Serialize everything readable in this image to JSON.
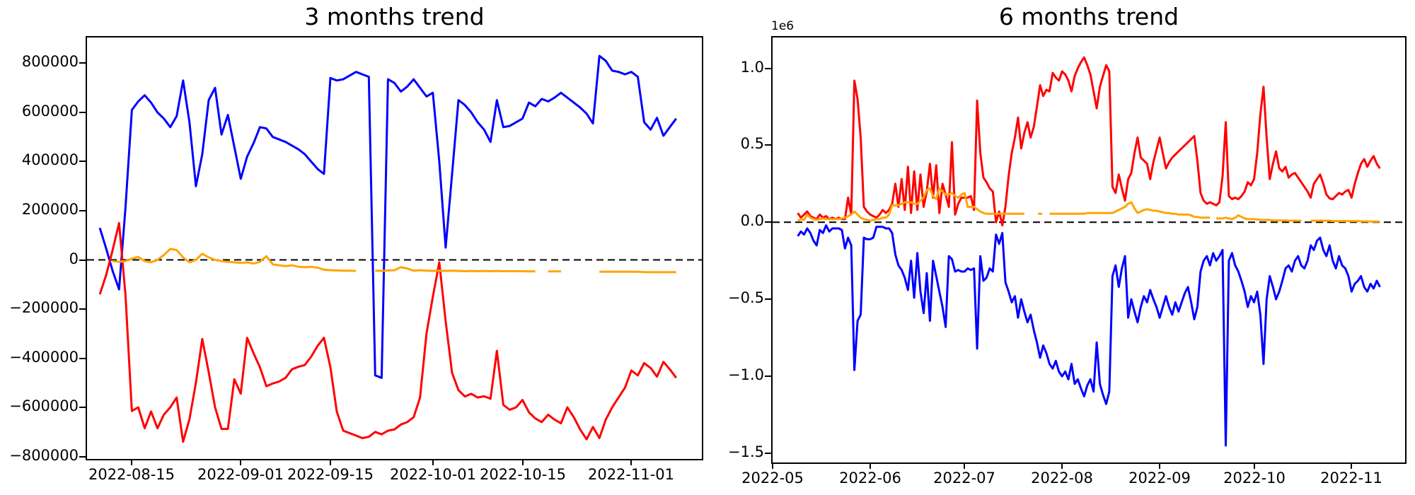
{
  "colors": {
    "blue_series": "#0000ff",
    "red_series": "#ff0000",
    "orange_series": "#ffa500",
    "zero_line": "#000000",
    "axis": "#000000",
    "background": "#ffffff"
  },
  "chart_data": [
    {
      "type": "line",
      "title": "3 months trend",
      "x_unit": "days",
      "x_start_date": "2022-08-08",
      "xlim": [
        0,
        96
      ],
      "ylim": [
        -810000,
        905000
      ],
      "value_multiplier": 1,
      "grid": false,
      "legend": null,
      "zero_line": true,
      "x_ticks": [
        {
          "x": 7,
          "label": "2022-08-15"
        },
        {
          "x": 24,
          "label": "2022-09-01"
        },
        {
          "x": 38,
          "label": "2022-09-15"
        },
        {
          "x": 54,
          "label": "2022-10-01"
        },
        {
          "x": 68,
          "label": "2022-10-15"
        },
        {
          "x": 85,
          "label": "2022-11-01"
        }
      ],
      "y_ticks": [
        {
          "v": 800000,
          "label": "800000"
        },
        {
          "v": 600000,
          "label": "600000"
        },
        {
          "v": 400000,
          "label": "400000"
        },
        {
          "v": 200000,
          "label": "200000"
        },
        {
          "v": 0,
          "label": "0"
        },
        {
          "v": -200000,
          "label": "−200000"
        },
        {
          "v": -400000,
          "label": "−400000"
        },
        {
          "v": -600000,
          "label": "−600000"
        },
        {
          "v": -800000,
          "label": "−800000"
        }
      ],
      "series": [
        {
          "name": "blue",
          "color": "#0000ff",
          "x0": 2,
          "dx": 1,
          "values": [
            130000,
            45000,
            -45000,
            -120000,
            210000,
            610000,
            645000,
            670000,
            640000,
            600000,
            575000,
            540000,
            585000,
            730000,
            560000,
            300000,
            430000,
            650000,
            700000,
            510000,
            590000,
            460000,
            330000,
            420000,
            475000,
            540000,
            535000,
            500000,
            490000,
            480000,
            465000,
            450000,
            430000,
            400000,
            370000,
            350000,
            740000,
            730000,
            735000,
            750000,
            765000,
            755000,
            745000,
            -470000,
            -480000,
            735000,
            720000,
            685000,
            705000,
            735000,
            700000,
            665000,
            680000,
            400000,
            50000,
            350000,
            650000,
            630000,
            600000,
            560000,
            530000,
            480000,
            650000,
            540000,
            545000,
            560000,
            575000,
            640000,
            625000,
            655000,
            645000,
            660000,
            680000,
            660000,
            640000,
            620000,
            595000,
            555000,
            830000,
            810000,
            770000,
            765000,
            755000,
            765000,
            745000,
            560000,
            530000,
            578000,
            505000,
            540000,
            575000
          ]
        },
        {
          "name": "red",
          "color": "#ff0000",
          "x0": 2,
          "dx": 1,
          "values": [
            -140000,
            -60000,
            40000,
            150000,
            -140000,
            -615000,
            -600000,
            -685000,
            -617000,
            -685000,
            -630000,
            -600000,
            -560000,
            -740000,
            -648000,
            -500000,
            -322000,
            -457000,
            -600000,
            -688000,
            -688000,
            -486000,
            -544000,
            -317000,
            -380000,
            -437000,
            -514000,
            -503000,
            -495000,
            -480000,
            -445000,
            -435000,
            -428000,
            -394000,
            -350000,
            -317000,
            -437000,
            -617000,
            -695000,
            -705000,
            -715000,
            -725000,
            -720000,
            -700000,
            -710000,
            -695000,
            -690000,
            -670000,
            -660000,
            -640000,
            -560000,
            -300000,
            -150000,
            -10000,
            -250000,
            -460000,
            -530000,
            -556000,
            -545000,
            -560000,
            -555000,
            -565000,
            -370000,
            -590000,
            -610000,
            -600000,
            -570000,
            -620000,
            -645000,
            -660000,
            -630000,
            -650000,
            -665000,
            -600000,
            -640000,
            -690000,
            -730000,
            -680000,
            -725000,
            -650000,
            -600000,
            -560000,
            -520000,
            -450000,
            -470000,
            -420000,
            -440000,
            -475000,
            -415000,
            -445000,
            -480000
          ]
        },
        {
          "name": "orange",
          "color": "#ffa500",
          "x0": 2,
          "dx": 1,
          "values": [
            null,
            null,
            -5000,
            -8000,
            -5000,
            5000,
            12000,
            -5000,
            -10000,
            0,
            20000,
            45000,
            40000,
            10000,
            -10000,
            0,
            25000,
            10000,
            0,
            -5000,
            -8000,
            -10000,
            -12000,
            -10000,
            -15000,
            -8000,
            15000,
            -18000,
            -22000,
            -25000,
            -22000,
            -28000,
            -30000,
            -28000,
            -32000,
            -40000,
            -42000,
            -43000,
            -44000,
            -44000,
            -45000,
            null,
            null,
            -44000,
            -45000,
            -43000,
            -42000,
            -30000,
            -35000,
            -44000,
            -42000,
            -44000,
            -45000,
            -44000,
            -45000,
            -44000,
            -45000,
            -46000,
            -45000,
            -46000,
            -45000,
            -46000,
            -45000,
            -46000,
            -46000,
            -46000,
            -46000,
            -47000,
            -47000,
            null,
            -47000,
            -47000,
            -47000,
            null,
            null,
            null,
            null,
            null,
            -48000,
            -48000,
            -48000,
            -48000,
            -48000,
            -48000,
            -48000,
            -50000,
            -50000,
            -50000,
            -50000,
            -50000,
            -50000
          ]
        }
      ]
    },
    {
      "type": "line",
      "title": "6 months trend",
      "offset_label": "1e6",
      "x_unit": "days",
      "x_start_date": "2022-05-01",
      "xlim": [
        0,
        201
      ],
      "ylim": [
        -1560000,
        1200000
      ],
      "value_multiplier": 1000000,
      "grid": false,
      "legend": null,
      "zero_line": true,
      "x_ticks": [
        {
          "x": 0,
          "label": "2022-05"
        },
        {
          "x": 31,
          "label": "2022-06"
        },
        {
          "x": 61,
          "label": "2022-07"
        },
        {
          "x": 92,
          "label": "2022-08"
        },
        {
          "x": 123,
          "label": "2022-09"
        },
        {
          "x": 153,
          "label": "2022-10"
        },
        {
          "x": 184,
          "label": "2022-11"
        }
      ],
      "y_ticks": [
        {
          "v": 1.0,
          "label": "1.0"
        },
        {
          "v": 0.5,
          "label": "0.5"
        },
        {
          "v": 0.0,
          "label": "0.0"
        },
        {
          "v": -0.5,
          "label": "−0.5"
        },
        {
          "v": -1.0,
          "label": "−1.0"
        },
        {
          "v": -1.5,
          "label": "−1.5"
        }
      ],
      "series": [
        {
          "name": "red",
          "color": "#ff0000",
          "x0": 8,
          "dx": 1,
          "values": [
            0.06,
            0.03,
            0.05,
            0.07,
            0.04,
            0.03,
            0.02,
            0.05,
            0.03,
            0.04,
            0.02,
            0.03,
            0.02,
            0.03,
            0.02,
            0.02,
            0.16,
            0.05,
            0.92,
            0.8,
            0.55,
            0.1,
            0.07,
            0.05,
            0.04,
            0.03,
            0.05,
            0.08,
            0.06,
            0.08,
            0.12,
            0.25,
            0.1,
            0.28,
            0.08,
            0.36,
            0.06,
            0.33,
            0.08,
            0.31,
            0.1,
            0.2,
            0.38,
            0.16,
            0.37,
            0.06,
            0.25,
            0.18,
            0.1,
            0.52,
            0.05,
            0.12,
            0.16,
            0.16,
            0.16,
            0.17,
            0.08,
            0.79,
            0.45,
            0.29,
            0.26,
            0.22,
            0.2,
            0.0,
            0.07,
            -0.02,
            0.1,
            0.3,
            0.45,
            0.55,
            0.68,
            0.48,
            0.58,
            0.65,
            0.55,
            0.62,
            0.75,
            0.89,
            0.82,
            0.86,
            0.85,
            0.97,
            0.94,
            0.92,
            0.98,
            0.96,
            0.92,
            0.85,
            0.95,
            1.0,
            1.04,
            1.07,
            1.02,
            0.96,
            0.85,
            0.74,
            0.88,
            0.95,
            1.02,
            0.98,
            0.23,
            0.19,
            0.31,
            0.22,
            0.14,
            0.28,
            0.32,
            0.45,
            0.55,
            0.42,
            0.4,
            0.38,
            0.28,
            0.39,
            0.47,
            0.55,
            0.45,
            0.35,
            0.39,
            0.42,
            0.44,
            0.46,
            0.48,
            0.5,
            0.52,
            0.54,
            0.56,
            0.4,
            0.19,
            0.14,
            0.12,
            0.13,
            0.12,
            0.11,
            0.13,
            0.3,
            0.65,
            0.17,
            0.15,
            0.16,
            0.15,
            0.17,
            0.2,
            0.26,
            0.24,
            0.28,
            0.45,
            0.7,
            0.88,
            0.55,
            0.28,
            0.38,
            0.46,
            0.35,
            0.33,
            0.36,
            0.29,
            0.31,
            0.32,
            0.29,
            0.26,
            0.23,
            0.2,
            0.16,
            0.25,
            0.28,
            0.31,
            0.25,
            0.18,
            0.155,
            0.15,
            0.17,
            0.19,
            0.18,
            0.2,
            0.21,
            0.16,
            0.25,
            0.32,
            0.38,
            0.41,
            0.36,
            0.4,
            0.43,
            0.38,
            0.35
          ]
        },
        {
          "name": "blue",
          "color": "#0000ff",
          "x0": 8,
          "dx": 1,
          "values": [
            -0.09,
            -0.06,
            -0.08,
            -0.04,
            -0.07,
            -0.12,
            -0.15,
            -0.05,
            -0.07,
            -0.02,
            -0.06,
            -0.04,
            -0.04,
            -0.04,
            -0.05,
            -0.17,
            -0.1,
            -0.15,
            -0.96,
            -0.64,
            -0.6,
            -0.1,
            -0.11,
            -0.11,
            -0.1,
            -0.03,
            -0.03,
            -0.03,
            -0.04,
            -0.04,
            -0.07,
            -0.21,
            -0.28,
            -0.31,
            -0.36,
            -0.44,
            -0.25,
            -0.49,
            -0.2,
            -0.45,
            -0.59,
            -0.33,
            -0.64,
            -0.25,
            -0.35,
            -0.45,
            -0.55,
            -0.68,
            -0.22,
            -0.24,
            -0.32,
            -0.31,
            -0.32,
            -0.32,
            -0.3,
            -0.31,
            -0.3,
            -0.82,
            -0.22,
            -0.38,
            -0.36,
            -0.3,
            -0.32,
            -0.08,
            -0.14,
            -0.07,
            -0.39,
            -0.45,
            -0.52,
            -0.48,
            -0.62,
            -0.5,
            -0.58,
            -0.65,
            -0.6,
            -0.7,
            -0.78,
            -0.88,
            -0.8,
            -0.85,
            -0.92,
            -0.95,
            -0.9,
            -0.97,
            -1.0,
            -0.97,
            -1.02,
            -0.92,
            -1.05,
            -1.02,
            -1.08,
            -1.13,
            -1.06,
            -1.02,
            -1.1,
            -0.78,
            -1.05,
            -1.12,
            -1.18,
            -1.1,
            -0.35,
            -0.28,
            -0.42,
            -0.3,
            -0.22,
            -0.62,
            -0.5,
            -0.58,
            -0.65,
            -0.55,
            -0.48,
            -0.52,
            -0.44,
            -0.5,
            -0.55,
            -0.62,
            -0.55,
            -0.48,
            -0.55,
            -0.6,
            -0.52,
            -0.58,
            -0.52,
            -0.46,
            -0.42,
            -0.52,
            -0.63,
            -0.55,
            -0.32,
            -0.25,
            -0.22,
            -0.28,
            -0.2,
            -0.25,
            -0.22,
            -0.18,
            -1.45,
            -0.25,
            -0.2,
            -0.28,
            -0.32,
            -0.38,
            -0.45,
            -0.55,
            -0.48,
            -0.52,
            -0.45,
            -0.6,
            -0.92,
            -0.5,
            -0.35,
            -0.42,
            -0.5,
            -0.45,
            -0.38,
            -0.3,
            -0.28,
            -0.32,
            -0.25,
            -0.22,
            -0.28,
            -0.3,
            -0.25,
            -0.15,
            -0.18,
            -0.12,
            -0.1,
            -0.18,
            -0.22,
            -0.15,
            -0.25,
            -0.3,
            -0.22,
            -0.28,
            -0.3,
            -0.35,
            -0.45,
            -0.4,
            -0.38,
            -0.35,
            -0.42,
            -0.45,
            -0.4,
            -0.43,
            -0.38,
            -0.42
          ]
        },
        {
          "name": "orange",
          "color": "#ffa500",
          "x0": 8,
          "dx": 1,
          "values": [
            0.01,
            0.02,
            0.015,
            0.05,
            0.03,
            0.02,
            0.015,
            0.02,
            0.025,
            0.02,
            0.02,
            0.02,
            0.02,
            0.02,
            0.025,
            0.03,
            0.04,
            0.05,
            0.07,
            0.05,
            0.03,
            0.02,
            0.015,
            0.01,
            0.015,
            0.02,
            0.02,
            0.03,
            0.03,
            0.05,
            0.11,
            0.11,
            0.11,
            0.12,
            0.13,
            0.13,
            0.13,
            0.12,
            0.12,
            0.14,
            0.16,
            0.21,
            0.22,
            0.17,
            0.15,
            0.22,
            0.2,
            0.18,
            0.18,
            0.19,
            0.17,
            0.16,
            0.18,
            0.19,
            0.1,
            0.1,
            0.1,
            0.085,
            0.07,
            0.06,
            0.055,
            0.055,
            0.055,
            0.055,
            0.055,
            0.055,
            0.055,
            0.055,
            0.055,
            0.055,
            0.055,
            0.055,
            0.055,
            null,
            null,
            null,
            null,
            0.055,
            null,
            null,
            0.055,
            0.055,
            0.055,
            0.055,
            0.055,
            0.055,
            0.055,
            0.055,
            0.055,
            0.055,
            0.055,
            0.055,
            0.06,
            0.06,
            0.06,
            0.06,
            0.06,
            0.06,
            0.06,
            0.06,
            0.06,
            0.07,
            0.08,
            0.09,
            0.1,
            0.12,
            0.13,
            0.09,
            0.06,
            0.07,
            0.08,
            0.085,
            0.08,
            0.075,
            0.075,
            0.07,
            0.065,
            0.06,
            0.06,
            0.055,
            0.055,
            0.05,
            0.05,
            0.05,
            0.05,
            0.045,
            0.035,
            0.035,
            0.03,
            0.03,
            0.03,
            0.03,
            null,
            0.025,
            0.025,
            0.025,
            0.03,
            0.025,
            0.02,
            0.03,
            0.045,
            0.035,
            0.025,
            0.02,
            0.02,
            0.02,
            0.018,
            0.015,
            0.015,
            0.015,
            0.015,
            0.012,
            0.012,
            0.012,
            0.012,
            0.012,
            0.01,
            0.01,
            0.01,
            0.01,
            0.01,
            null,
            null,
            0.01,
            0.01,
            0.01,
            0.01,
            0.01,
            0.01,
            0.01,
            0.008,
            0.008,
            0.008,
            0.008,
            0.008,
            0.008,
            0.008,
            0.008,
            0.008,
            0.006,
            0.006,
            0.006,
            0.005,
            0.005,
            0.005,
            0.005
          ]
        }
      ]
    }
  ]
}
